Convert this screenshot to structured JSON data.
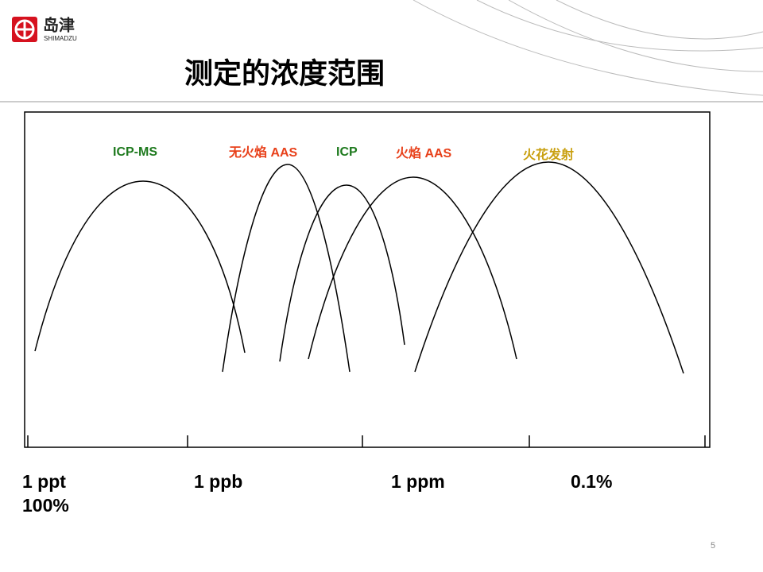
{
  "header": {
    "logo_cn": "岛津",
    "logo_en": "SHIMADZU",
    "title": "测定的浓度范围"
  },
  "diagram": {
    "curves": [
      {
        "label": "ICP-MS",
        "color": "#1e7a1e"
      },
      {
        "label": "无火焰 AAS",
        "color": "#e8401a"
      },
      {
        "label": "ICP",
        "color": "#1e7a1e"
      },
      {
        "label": "火焰 AAS",
        "color": "#e8401a"
      },
      {
        "label": "火花发射",
        "color": "#c9a010"
      }
    ],
    "scale_labels": [
      "1 ppt",
      "1 ppb",
      "1 ppm",
      "0.1%",
      "100%"
    ]
  },
  "page_number": "5"
}
